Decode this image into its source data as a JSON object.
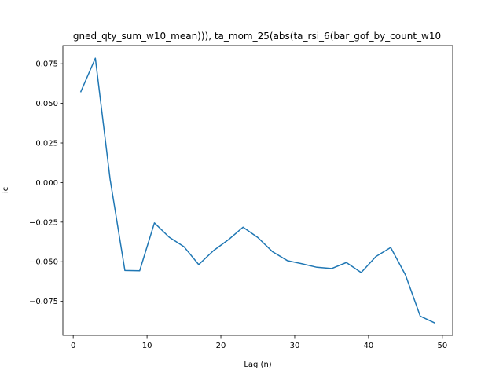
{
  "chart_data": {
    "type": "line",
    "title": "gned_qty_sum_w10_mean))), ta_mom_25(abs(ta_rsi_6(bar_gof_by_count_w10",
    "xlabel": "Lag (n)",
    "ylabel": "ic",
    "xlim": [
      -1.4,
      51.4
    ],
    "ylim": [
      -0.0965,
      0.0865
    ],
    "x_ticks": [
      0,
      10,
      20,
      30,
      40,
      50
    ],
    "y_ticks": [
      -0.075,
      -0.05,
      -0.025,
      0.0,
      0.025,
      0.05,
      0.075
    ],
    "y_tick_labels": [
      "−0.075",
      "−0.050",
      "−0.025",
      "0.000",
      "0.025",
      "0.050",
      "0.075"
    ],
    "grid": false,
    "color": "#1f77b4",
    "series": [
      {
        "x": [
          1,
          3,
          5,
          7,
          9,
          11,
          13,
          15,
          17,
          19,
          21,
          23,
          25,
          27,
          29,
          31,
          33,
          35,
          37,
          39,
          41,
          43,
          45,
          47,
          49
        ],
        "values": [
          0.057,
          0.0785,
          0.002,
          -0.0555,
          -0.0557,
          -0.0255,
          -0.0345,
          -0.0405,
          -0.0518,
          -0.043,
          -0.0362,
          -0.0282,
          -0.0347,
          -0.0437,
          -0.0493,
          -0.0513,
          -0.0535,
          -0.0543,
          -0.0505,
          -0.0568,
          -0.0467,
          -0.041,
          -0.0583,
          -0.0843,
          -0.0887
        ]
      }
    ]
  }
}
